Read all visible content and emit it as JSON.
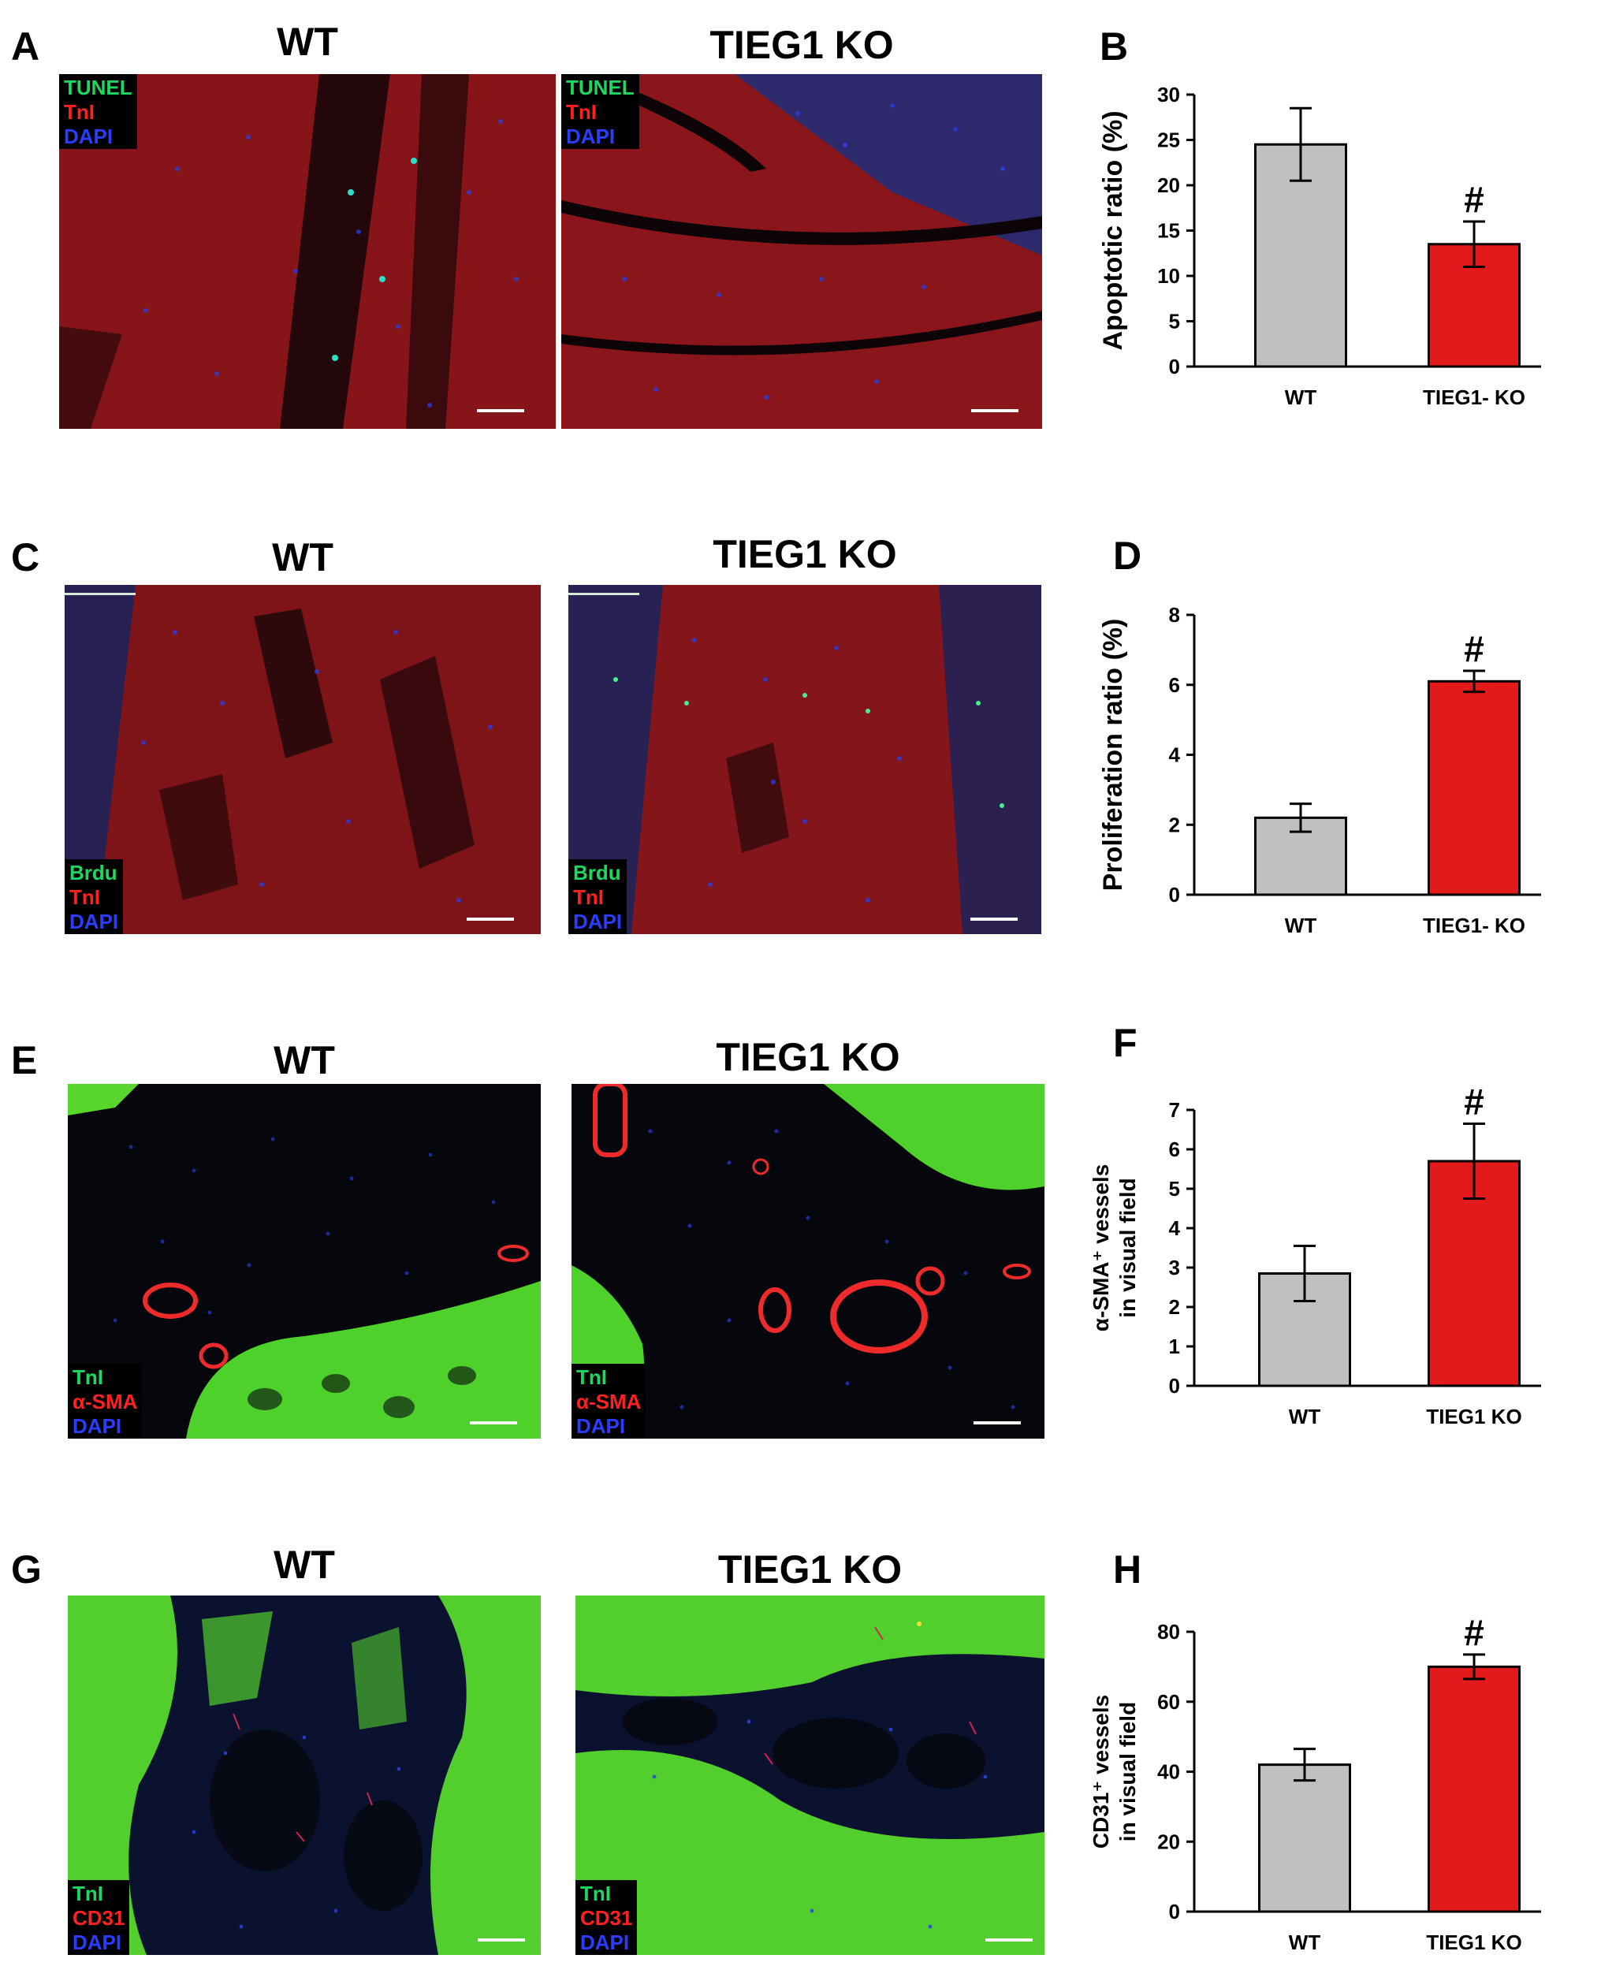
{
  "colors": {
    "wt_bar": "#c0c0c0",
    "ko_bar": "#e31a1c",
    "green_label": "#1ed760",
    "red_label": "#ff2020",
    "blue_label": "#2c3cff"
  },
  "row_a": {
    "letter_a": "A",
    "letter_b": "B",
    "wt_title": "WT",
    "ko_title": "TIEG1 KO",
    "stains": [
      "TUNEL",
      "TnI",
      "DAPI"
    ]
  },
  "row_c": {
    "letter_c": "C",
    "letter_d": "D",
    "wt_title": "WT",
    "ko_title": "TIEG1 KO",
    "stains": [
      "Brdu",
      "TnI",
      "DAPI"
    ]
  },
  "row_e": {
    "letter_e": "E",
    "letter_f": "F",
    "wt_title": "WT",
    "ko_title": "TIEG1 KO",
    "stains": [
      "TnI",
      "α-SMA",
      "DAPI"
    ]
  },
  "row_g": {
    "letter_g": "G",
    "letter_h": "H",
    "wt_title": "WT",
    "ko_title": "TIEG1 KO",
    "stains": [
      "TnI",
      "CD31",
      "DAPI"
    ]
  },
  "chart_data": [
    {
      "panel": "B",
      "type": "bar",
      "categories": [
        "WT",
        "TIEG1- KO"
      ],
      "values": [
        24.5,
        13.5
      ],
      "errors": [
        4.0,
        2.5
      ],
      "ylabel": "Apoptotic ratio (%)",
      "ylim": [
        0,
        30
      ],
      "yticks": [
        0,
        5,
        10,
        15,
        20,
        25,
        30
      ],
      "significance": [
        "",
        "#"
      ]
    },
    {
      "panel": "D",
      "type": "bar",
      "categories": [
        "WT",
        "TIEG1- KO"
      ],
      "values": [
        2.2,
        6.1
      ],
      "errors": [
        0.4,
        0.3
      ],
      "ylabel": "Proliferation ratio (%)",
      "ylim": [
        0,
        8
      ],
      "yticks": [
        0,
        2,
        4,
        6,
        8
      ],
      "significance": [
        "",
        "#"
      ]
    },
    {
      "panel": "F",
      "type": "bar",
      "categories": [
        "WT",
        "TIEG1 KO"
      ],
      "values": [
        2.85,
        5.7
      ],
      "errors": [
        0.7,
        0.95
      ],
      "ylabel_lines": [
        "α-SMA⁺ vessels",
        "in visual field"
      ],
      "ylim": [
        0,
        7
      ],
      "yticks": [
        0,
        1,
        2,
        3,
        4,
        5,
        6,
        7
      ],
      "significance": [
        "",
        "#"
      ]
    },
    {
      "panel": "H",
      "type": "bar",
      "categories": [
        "WT",
        "TIEG1 KO"
      ],
      "values": [
        42,
        70
      ],
      "errors": [
        4.5,
        3.5
      ],
      "ylabel_lines": [
        "CD31⁺ vessels",
        "in visual field"
      ],
      "ylim": [
        0,
        80
      ],
      "yticks": [
        0,
        20,
        40,
        60,
        80
      ],
      "significance": [
        "",
        "#"
      ]
    }
  ]
}
